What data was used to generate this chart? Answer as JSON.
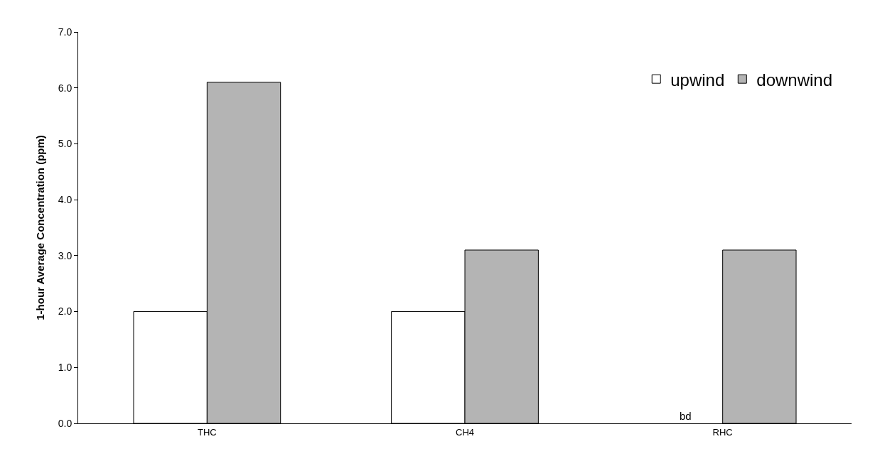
{
  "chart_data": {
    "type": "bar",
    "ylabel": "1-hour Average Concentration (ppm)",
    "categories": [
      "THC",
      "CH4",
      "RHC"
    ],
    "series": [
      {
        "name": "upwind",
        "color": "#ffffff",
        "values": [
          2.0,
          2.0,
          null
        ]
      },
      {
        "name": "downwind",
        "color": "#b4b4b4",
        "values": [
          6.1,
          3.1,
          3.1
        ]
      }
    ],
    "annotations": [
      {
        "text": "bd",
        "x": "RHC",
        "y": 0
      }
    ],
    "ylim": [
      0,
      7
    ],
    "yticks": [
      {
        "value": 0,
        "label": "0.0"
      },
      {
        "value": 1,
        "label": "1.0"
      },
      {
        "value": 2,
        "label": "2.0"
      },
      {
        "value": 3,
        "label": "3.0"
      },
      {
        "value": 4,
        "label": "4.0"
      },
      {
        "value": 5,
        "label": "5.0"
      },
      {
        "value": 6,
        "label": "6.0"
      },
      {
        "value": 7,
        "label": "7.0"
      }
    ],
    "legend": "top right"
  }
}
